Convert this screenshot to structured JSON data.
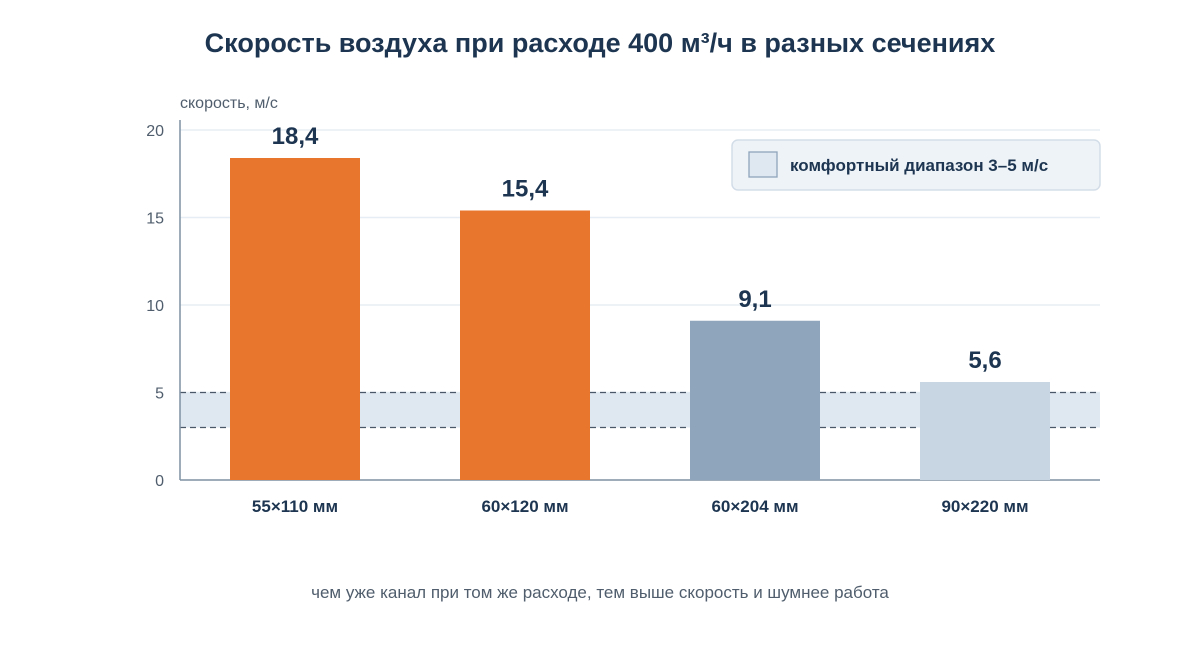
{
  "chart_data": {
    "type": "bar",
    "title": "Скорость воздуха при расходе 400 м³/ч в разных сечениях",
    "ylabel": "скорость, м/с",
    "xlabel": "",
    "categories": [
      "55×110 мм",
      "60×120 мм",
      "60×204 мм",
      "90×220 мм"
    ],
    "values": [
      18.4,
      15.4,
      9.1,
      5.6
    ],
    "value_labels": [
      "18,4",
      "15,4",
      "9,1",
      "5,6"
    ],
    "bar_colors": [
      "#e8762c",
      "#e8762c",
      "#8fa5bb",
      "#c8d6e3"
    ],
    "ylim": [
      0,
      20
    ],
    "yticks": [
      0,
      5,
      10,
      15,
      20
    ],
    "grid": true,
    "band": {
      "from": 3,
      "to": 5,
      "label": "комфортный диапазон 3–5 м/с",
      "color": "#dfe7f0"
    },
    "legend_position": "top-right",
    "footnote": "чем уже канал при том же расходе, тем выше скорость и шумнее работа"
  }
}
